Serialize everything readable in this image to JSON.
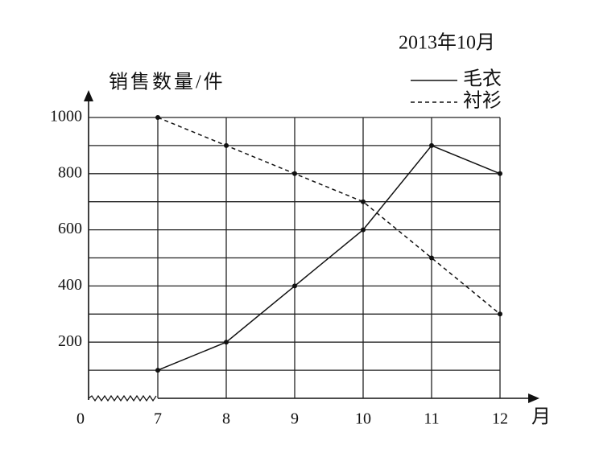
{
  "chart_data": {
    "type": "line",
    "title": "2013年10月",
    "y_label": "销售数量/件",
    "x_label": "月",
    "origin_label": "0",
    "categories": [
      "7",
      "8",
      "9",
      "10",
      "11",
      "12"
    ],
    "series": [
      {
        "name": "毛衣",
        "color": "#111111",
        "style": "solid",
        "values": [
          100,
          200,
          400,
          600,
          900,
          800
        ]
      },
      {
        "name": "衬衫",
        "color": "#111111",
        "style": "dashed",
        "values": [
          1000,
          900,
          800,
          700,
          500,
          300
        ]
      }
    ],
    "ylim": [
      0,
      1000
    ],
    "yticks": [
      200,
      400,
      600,
      800,
      1000
    ],
    "minor_yticks": [
      100,
      300,
      500,
      700,
      900
    ],
    "grid": true,
    "axis_break": true
  }
}
